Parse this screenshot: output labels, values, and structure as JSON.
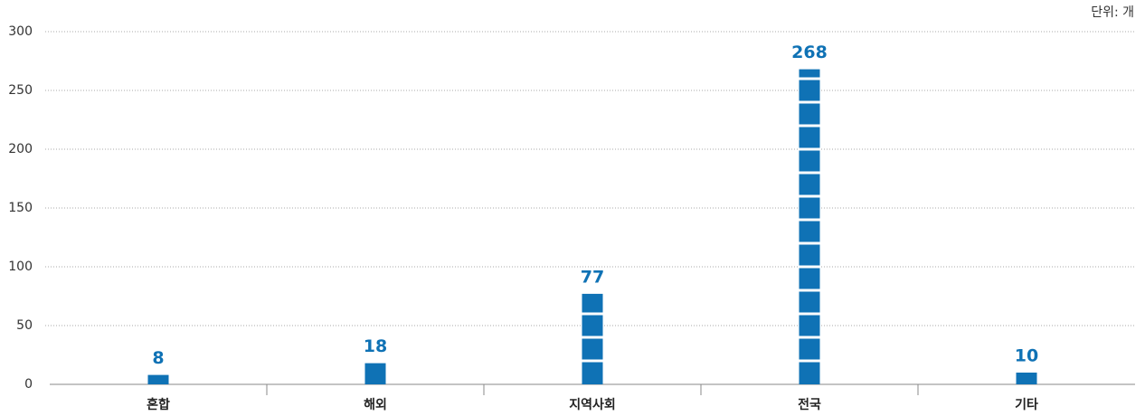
{
  "chart_data": {
    "type": "bar",
    "unit_label": "단위: 개",
    "categories": [
      "혼합",
      "해외",
      "지역사회",
      "전국",
      "기타"
    ],
    "values": [
      8,
      18,
      77,
      268,
      10
    ],
    "color": "#0f72b5",
    "ylim": [
      0,
      300
    ],
    "yticks": [
      0,
      50,
      100,
      150,
      200,
      250,
      300
    ],
    "grid": true
  }
}
